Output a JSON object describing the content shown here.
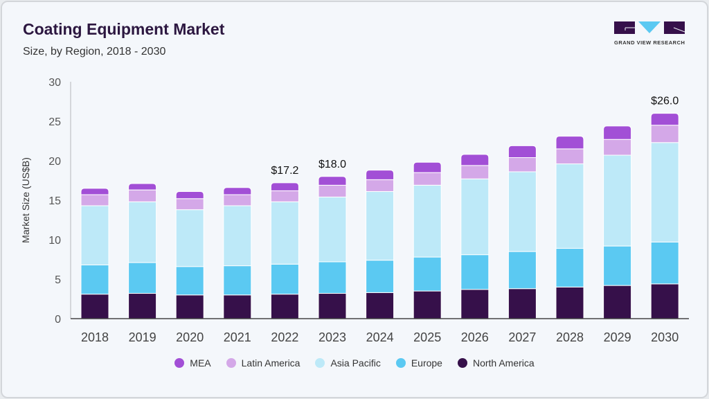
{
  "header": {
    "title": "Coating Equipment Market",
    "subtitle": "Size, by Region, 2018 - 2030",
    "logo_text": "GRAND VIEW RESEARCH"
  },
  "chart_data": {
    "type": "bar",
    "stacked": true,
    "title": "Coating Equipment Market",
    "subtitle": "Size, by Region, 2018 - 2030",
    "xlabel": "",
    "ylabel": "Market Size (US$B)",
    "ylim": [
      0,
      30
    ],
    "yticks": [
      0,
      5,
      10,
      15,
      20,
      25,
      30
    ],
    "grid": false,
    "legend_position": "bottom",
    "categories": [
      "2018",
      "2019",
      "2020",
      "2021",
      "2022",
      "2023",
      "2024",
      "2025",
      "2026",
      "2027",
      "2028",
      "2029",
      "2030"
    ],
    "series": [
      {
        "name": "North America",
        "color": "#36104a",
        "values": [
          3.1,
          3.2,
          3.0,
          3.0,
          3.1,
          3.2,
          3.3,
          3.5,
          3.7,
          3.8,
          4.0,
          4.2,
          4.4
        ]
      },
      {
        "name": "Europe",
        "color": "#5bc9f2",
        "values": [
          3.7,
          3.9,
          3.6,
          3.7,
          3.8,
          4.0,
          4.1,
          4.3,
          4.4,
          4.7,
          4.9,
          5.0,
          5.3
        ]
      },
      {
        "name": "Asia Pacific",
        "color": "#bde9f8",
        "values": [
          7.5,
          7.7,
          7.2,
          7.6,
          7.9,
          8.2,
          8.7,
          9.1,
          9.6,
          10.1,
          10.7,
          11.5,
          12.6
        ]
      },
      {
        "name": "Latin America",
        "color": "#d4a8e8",
        "values": [
          1.4,
          1.5,
          1.4,
          1.4,
          1.4,
          1.5,
          1.5,
          1.6,
          1.7,
          1.8,
          1.9,
          2.0,
          2.2
        ]
      },
      {
        "name": "MEA",
        "color": "#a24fd6",
        "values": [
          0.8,
          0.8,
          0.9,
          0.9,
          1.0,
          1.1,
          1.2,
          1.3,
          1.4,
          1.5,
          1.6,
          1.7,
          1.5
        ]
      }
    ],
    "annotations": [
      {
        "category": "2022",
        "text": "$17.2"
      },
      {
        "category": "2023",
        "text": "$18.0"
      },
      {
        "category": "2030",
        "text": "$26.0"
      }
    ],
    "legend_order": [
      "MEA",
      "Latin America",
      "Asia Pacific",
      "Europe",
      "North America"
    ]
  }
}
